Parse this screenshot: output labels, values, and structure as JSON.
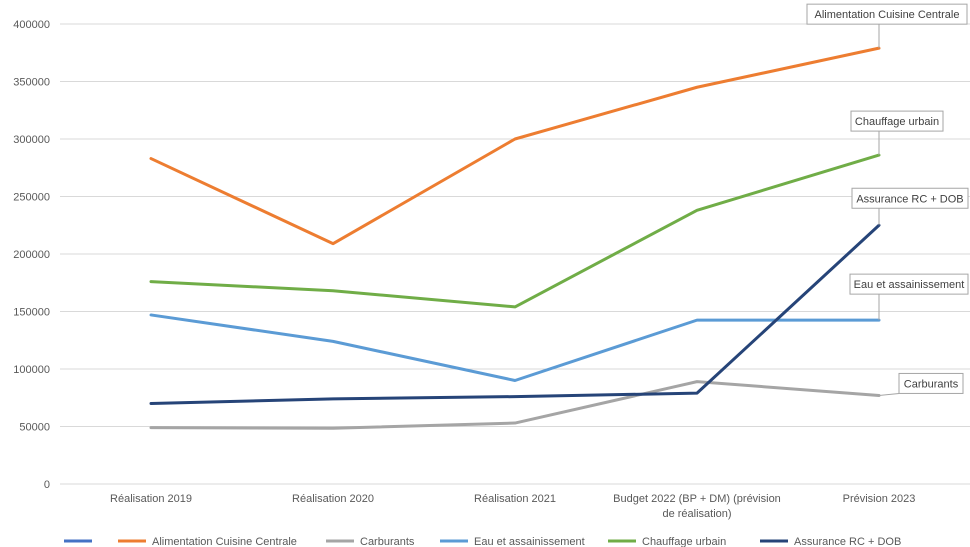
{
  "chart_data": {
    "type": "line",
    "title": "",
    "xlabel": "",
    "ylabel": "",
    "ylim": [
      0,
      400000
    ],
    "ytick_step": 50000,
    "grid": true,
    "legend_position": "bottom",
    "categories": [
      [
        "Réalisation 2019"
      ],
      [
        "Réalisation 2020"
      ],
      [
        "Réalisation 2021"
      ],
      [
        "Budget 2022 (BP + DM) (prévision",
        "de réalisation)"
      ],
      [
        "Prévision 2023"
      ]
    ],
    "series": [
      {
        "name": "Alimentation Cuisine Centrale",
        "color": "#ED7D31",
        "values": [
          283000,
          209000,
          300000,
          345000,
          379000
        ],
        "callout": "Alimentation Cuisine Centrale"
      },
      {
        "name": "Carburants",
        "color": "#A5A5A5",
        "values": [
          49000,
          48500,
          53000,
          89000,
          77000
        ],
        "callout": "Carburants"
      },
      {
        "name": "Eau et assainissement",
        "color": "#5B9BD5",
        "values": [
          147000,
          124000,
          90000,
          142500,
          142500
        ],
        "callout": "Eau et assainissement"
      },
      {
        "name": "Chauffage urbain",
        "color": "#70AD47",
        "values": [
          176000,
          168000,
          154000,
          238000,
          286000
        ],
        "callout": "Chauffage urbain"
      },
      {
        "name": "Assurance RC + DOB",
        "color": "#264478",
        "values": [
          70000,
          74000,
          76000,
          79000,
          225000
        ],
        "callout": "Assurance RC + DOB"
      }
    ],
    "legend": [
      {
        "name": "",
        "color": "#4472C4"
      },
      {
        "name": "Alimentation Cuisine Centrale",
        "color": "#ED7D31"
      },
      {
        "name": "Carburants",
        "color": "#A5A5A5"
      },
      {
        "name": "Eau et assainissement",
        "color": "#5B9BD5"
      },
      {
        "name": "Chauffage urbain",
        "color": "#70AD47"
      },
      {
        "name": "Assurance RC + DOB",
        "color": "#264478"
      }
    ]
  }
}
